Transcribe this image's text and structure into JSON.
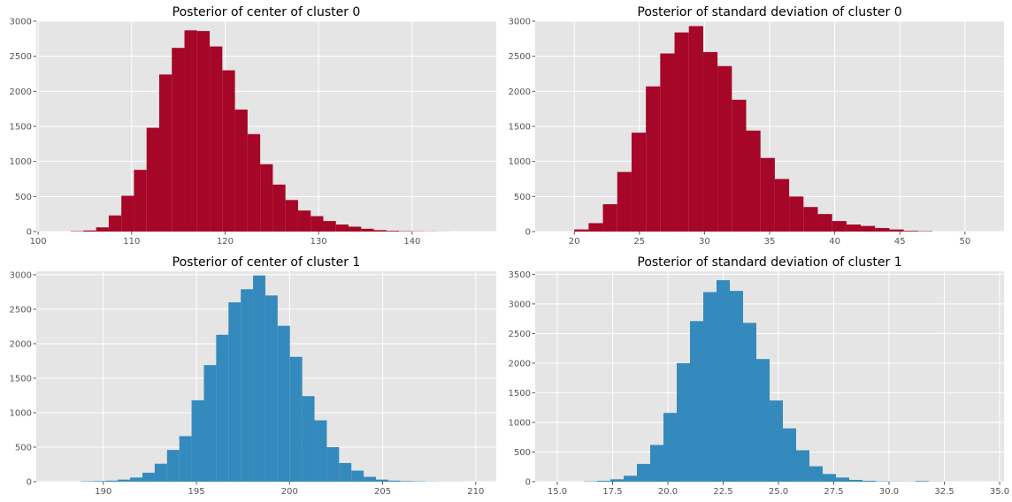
{
  "chart_data": [
    {
      "type": "bar",
      "title": "Posterior of center of cluster 0",
      "color": "#A60628",
      "xlim": [
        99.8,
        149.0
      ],
      "ylim": [
        0,
        3000
      ],
      "xticks": [
        "100",
        "110",
        "120",
        "130",
        "140"
      ],
      "yticks": [
        "0",
        "500",
        "1000",
        "1500",
        "2000",
        "2500",
        "3000"
      ],
      "grid": true,
      "bin_edges": [
        103.5,
        104.85,
        106.2,
        107.55,
        108.9,
        110.25,
        111.6,
        112.95,
        114.3,
        115.65,
        117.0,
        118.35,
        119.7,
        121.05,
        122.4,
        123.75,
        125.1,
        126.45,
        127.8,
        129.15,
        130.5,
        131.85,
        133.2,
        134.55,
        135.9,
        137.25,
        138.6,
        139.95,
        141.3,
        142.65,
        144.0
      ],
      "counts": [
        5,
        15,
        60,
        230,
        510,
        880,
        1480,
        2240,
        2620,
        2870,
        2860,
        2640,
        2300,
        1740,
        1390,
        960,
        670,
        450,
        300,
        220,
        150,
        100,
        70,
        40,
        20,
        10,
        5,
        3,
        2,
        1
      ]
    },
    {
      "type": "bar",
      "title": "Posterior of standard deviation of cluster 0",
      "color": "#A60628",
      "xlim": [
        17.0,
        53.0
      ],
      "ylim": [
        0,
        3000
      ],
      "xticks": [
        "20",
        "25",
        "30",
        "35",
        "40",
        "45",
        "50"
      ],
      "yticks": [
        "0",
        "500",
        "1000",
        "1500",
        "2000",
        "2500",
        "3000"
      ],
      "grid": true,
      "bin_edges": [
        20.0,
        21.1,
        22.2,
        23.3,
        24.4,
        25.5,
        26.6,
        27.7,
        28.8,
        29.9,
        31.0,
        32.1,
        33.2,
        34.3,
        35.4,
        36.5,
        37.6,
        38.7,
        39.8,
        40.9,
        42.0,
        43.1,
        44.2,
        45.3,
        46.4,
        47.5
      ],
      "counts": [
        30,
        120,
        390,
        850,
        1410,
        2070,
        2540,
        2840,
        2930,
        2560,
        2360,
        1880,
        1440,
        1050,
        750,
        500,
        350,
        250,
        150,
        100,
        80,
        50,
        30,
        10,
        5
      ]
    },
    {
      "type": "bar",
      "title": "Posterior of center of cluster 1",
      "color": "#348ABD",
      "xlim": [
        186.4,
        211.1
      ],
      "ylim": [
        0,
        3050
      ],
      "xticks": [
        "190",
        "195",
        "200",
        "205",
        "210"
      ],
      "yticks": [
        "0",
        "500",
        "1000",
        "1500",
        "2000",
        "2500",
        "3000"
      ],
      "grid": true,
      "bin_edges": [
        188.8,
        189.46,
        190.12,
        190.78,
        191.44,
        192.1,
        192.76,
        193.42,
        194.08,
        194.74,
        195.4,
        196.06,
        196.72,
        197.38,
        198.04,
        198.7,
        199.36,
        200.02,
        200.68,
        201.34,
        202.0,
        202.66,
        203.32,
        203.98,
        204.64,
        205.3,
        205.96,
        206.62,
        207.28,
        207.94,
        208.6,
        209.26
      ],
      "counts": [
        5,
        8,
        15,
        30,
        60,
        130,
        260,
        460,
        660,
        1180,
        1690,
        2130,
        2600,
        2790,
        2990,
        2700,
        2260,
        1810,
        1240,
        890,
        500,
        270,
        160,
        70,
        30,
        15,
        8,
        5,
        2,
        1,
        1
      ]
    },
    {
      "type": "bar",
      "title": "Posterior of standard deviation of cluster 1",
      "color": "#348ABD",
      "xlim": [
        14.0,
        35.2
      ],
      "ylim": [
        0,
        3550
      ],
      "xticks": [
        "15.0",
        "17.5",
        "20.0",
        "22.5",
        "25.0",
        "27.5",
        "30.0",
        "32.5",
        "35.0"
      ],
      "yticks": [
        "0",
        "500",
        "1000",
        "1500",
        "2000",
        "2500",
        "3000",
        "3500"
      ],
      "grid": true,
      "bin_edges": [
        15.0,
        15.6,
        16.2,
        16.8,
        17.4,
        18.0,
        18.6,
        19.2,
        19.8,
        20.4,
        21.0,
        21.6,
        22.2,
        22.8,
        23.4,
        24.0,
        24.6,
        25.2,
        25.8,
        26.4,
        27.0,
        27.6,
        28.2,
        28.8,
        29.4,
        30.0,
        30.6,
        31.2,
        31.8,
        32.4,
        33.0
      ],
      "counts": [
        0,
        0,
        5,
        15,
        40,
        100,
        300,
        620,
        1160,
        2000,
        2710,
        3200,
        3400,
        3220,
        2680,
        2070,
        1370,
        900,
        530,
        260,
        130,
        70,
        30,
        15,
        5,
        3,
        2,
        10,
        2,
        0
      ]
    }
  ]
}
